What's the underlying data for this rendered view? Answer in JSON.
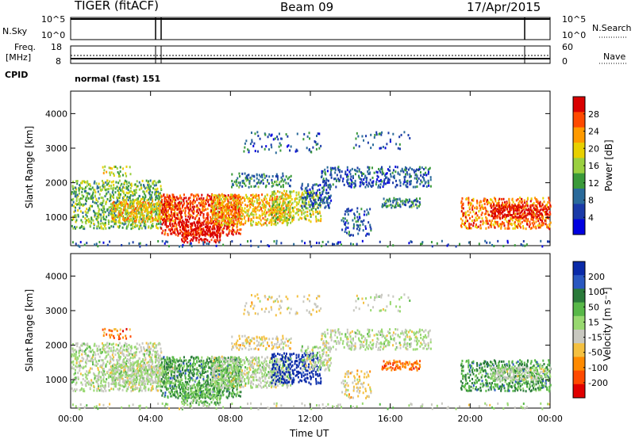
{
  "header": {
    "radar": "TIGER (fitACF)",
    "beam": "Beam 09",
    "date": "17/Apr/2015"
  },
  "top_panels": {
    "nsky_label": "N.Sky",
    "nsky_ticks": [
      "10^5",
      "10^0"
    ],
    "nsearch_label": "N.Search",
    "nsearch_ticks": [
      "10^5",
      "10^0"
    ],
    "freq_label_1": "Freq.",
    "freq_label_2": "[MHz]",
    "freq_ticks": [
      "18",
      "8"
    ],
    "nave_label": "Nave",
    "nave_ticks": [
      "60",
      "0"
    ],
    "cpid_label": "CPID",
    "cpid_value": "normal (fast) 151"
  },
  "chart_data": [
    {
      "type": "heatmap",
      "title": "",
      "ylabel": "Slant Range [km]",
      "xlabel": "",
      "ylim": [
        180,
        4650
      ],
      "yticks": [
        1000,
        2000,
        3000,
        4000
      ],
      "colorbar": {
        "label": "Power [dB]",
        "ticks": [
          "28",
          "24",
          "20",
          "16",
          "12",
          "8",
          "4"
        ],
        "colors": [
          "#d90000",
          "#ff4a00",
          "#ff9a00",
          "#e8d000",
          "#9ad040",
          "#3a9a3a",
          "#2a6a9a",
          "#1a3aa8",
          "#0000e0"
        ]
      }
    },
    {
      "type": "heatmap",
      "title": "",
      "ylabel": "Slant Range [km]",
      "xlabel": "Time UT",
      "xlim": [
        "00:00",
        "24:00"
      ],
      "xticks": [
        "00:00",
        "04:00",
        "08:00",
        "12:00",
        "16:00",
        "20:00",
        "00:00"
      ],
      "ylim": [
        180,
        4650
      ],
      "yticks": [
        1000,
        2000,
        3000,
        4000
      ],
      "colorbar": {
        "label": "Velocity [m s⁻¹]",
        "ticks": [
          "200",
          "100",
          "50",
          "15",
          "-15",
          "-50",
          "-100",
          "-200"
        ],
        "colors": [
          "#0a2aa8",
          "#2a58c0",
          "#2a7a3a",
          "#58b848",
          "#98d870",
          "#c8c8c0",
          "#f4c040",
          "#ff8a00",
          "#ff4a00",
          "#e00000"
        ]
      }
    }
  ]
}
